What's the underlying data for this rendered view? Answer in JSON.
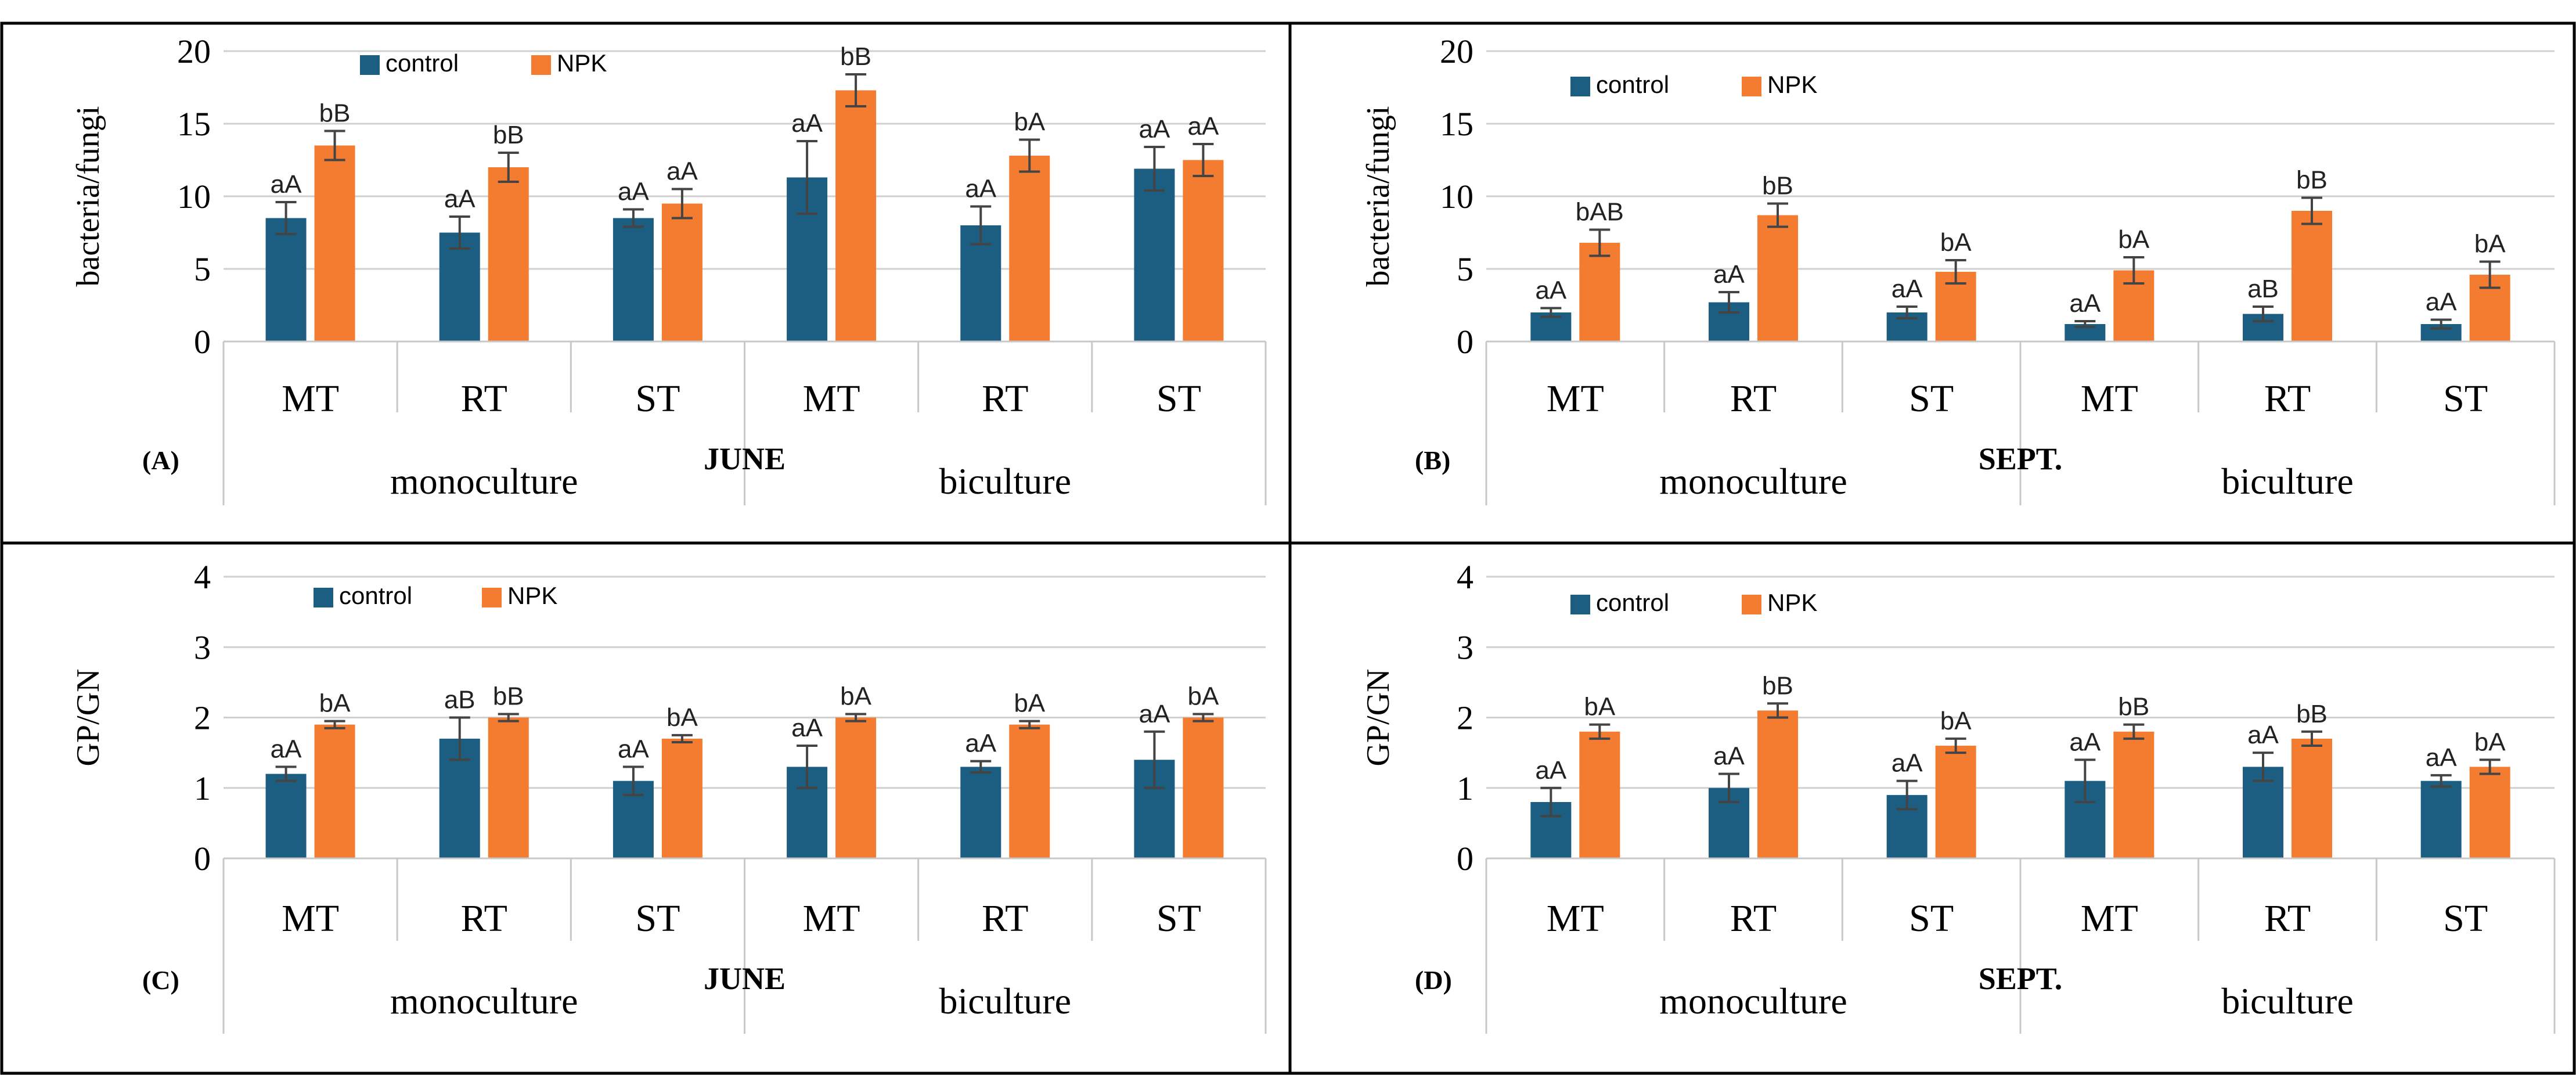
{
  "legend": {
    "control": {
      "label": "control",
      "color": "#1b5e82"
    },
    "npk": {
      "label": "NPK",
      "color": "#f47c30"
    }
  },
  "chart_data": [
    {
      "type": "bar",
      "panel_label": "(A)",
      "month": "JUNE",
      "ylabel": "bacteria/fungi",
      "ylim": [
        0,
        20
      ],
      "yticks": [
        0,
        5,
        10,
        15,
        20
      ],
      "categories": [
        "MT",
        "RT",
        "ST",
        "MT",
        "RT",
        "ST"
      ],
      "groups": [
        "monoculture",
        "biculture"
      ],
      "series": [
        {
          "name": "control",
          "values": [
            8.5,
            7.5,
            8.5,
            11.3,
            8.0,
            11.9
          ],
          "errors": [
            1.1,
            1.1,
            0.6,
            2.5,
            1.3,
            1.5
          ],
          "labels": [
            "aA",
            "aA",
            "aA",
            "aA",
            "aA",
            "aA"
          ]
        },
        {
          "name": "NPK",
          "values": [
            13.5,
            12.0,
            9.5,
            17.3,
            12.8,
            12.5
          ],
          "errors": [
            1.0,
            1.0,
            1.0,
            1.1,
            1.1,
            1.1
          ],
          "labels": [
            "bB",
            "bB",
            "aA",
            "bB",
            "bA",
            "aA"
          ]
        }
      ]
    },
    {
      "type": "bar",
      "panel_label": "(B)",
      "month": "SEPT.",
      "ylabel": "bacteria/fungi",
      "ylim": [
        0,
        20
      ],
      "yticks": [
        0,
        5,
        10,
        15,
        20
      ],
      "categories": [
        "MT",
        "RT",
        "ST",
        "MT",
        "RT",
        "ST"
      ],
      "groups": [
        "monoculture",
        "biculture"
      ],
      "series": [
        {
          "name": "control",
          "values": [
            2.0,
            2.7,
            2.0,
            1.2,
            1.9,
            1.2
          ],
          "errors": [
            0.3,
            0.7,
            0.4,
            0.2,
            0.5,
            0.3
          ],
          "labels": [
            "aA",
            "aA",
            "aA",
            "aA",
            "aB",
            "aA"
          ]
        },
        {
          "name": "NPK",
          "values": [
            6.8,
            8.7,
            4.8,
            4.9,
            9.0,
            4.6
          ],
          "errors": [
            0.9,
            0.8,
            0.8,
            0.9,
            0.9,
            0.9
          ],
          "labels": [
            "bAB",
            "bB",
            "bA",
            "bA",
            "bB",
            "bA"
          ]
        }
      ]
    },
    {
      "type": "bar",
      "panel_label": "(C)",
      "month": "JUNE",
      "ylabel": "GP/GN",
      "ylim": [
        0,
        4
      ],
      "yticks": [
        0,
        1,
        2,
        3,
        4
      ],
      "categories": [
        "MT",
        "RT",
        "ST",
        "MT",
        "RT",
        "ST"
      ],
      "groups": [
        "monoculture",
        "biculture"
      ],
      "series": [
        {
          "name": "control",
          "values": [
            1.2,
            1.7,
            1.1,
            1.3,
            1.3,
            1.4
          ],
          "errors": [
            0.1,
            0.3,
            0.2,
            0.3,
            0.08,
            0.4
          ],
          "labels": [
            "aA",
            "aB",
            "aA",
            "aA",
            "aA",
            "aA"
          ]
        },
        {
          "name": "NPK",
          "values": [
            1.9,
            2.0,
            1.7,
            2.0,
            1.9,
            2.0
          ],
          "errors": [
            0.05,
            0.05,
            0.05,
            0.05,
            0.05,
            0.05
          ],
          "labels": [
            "bA",
            "bB",
            "bA",
            "bA",
            "bA",
            "bA"
          ]
        }
      ]
    },
    {
      "type": "bar",
      "panel_label": "(D)",
      "month": "SEPT.",
      "ylabel": "GP/GN",
      "ylim": [
        0,
        4
      ],
      "yticks": [
        0,
        1,
        2,
        3,
        4
      ],
      "categories": [
        "MT",
        "RT",
        "ST",
        "MT",
        "RT",
        "ST"
      ],
      "groups": [
        "monoculture",
        "biculture"
      ],
      "series": [
        {
          "name": "control",
          "values": [
            0.8,
            1.0,
            0.9,
            1.1,
            1.3,
            1.1
          ],
          "errors": [
            0.2,
            0.2,
            0.2,
            0.3,
            0.2,
            0.08
          ],
          "labels": [
            "aA",
            "aA",
            "aA",
            "aA",
            "aA",
            "aA"
          ]
        },
        {
          "name": "NPK",
          "values": [
            1.8,
            2.1,
            1.6,
            1.8,
            1.7,
            1.3
          ],
          "errors": [
            0.1,
            0.1,
            0.1,
            0.1,
            0.1,
            0.1
          ],
          "labels": [
            "bA",
            "bB",
            "bA",
            "bB",
            "bB",
            "bA"
          ]
        }
      ]
    }
  ]
}
